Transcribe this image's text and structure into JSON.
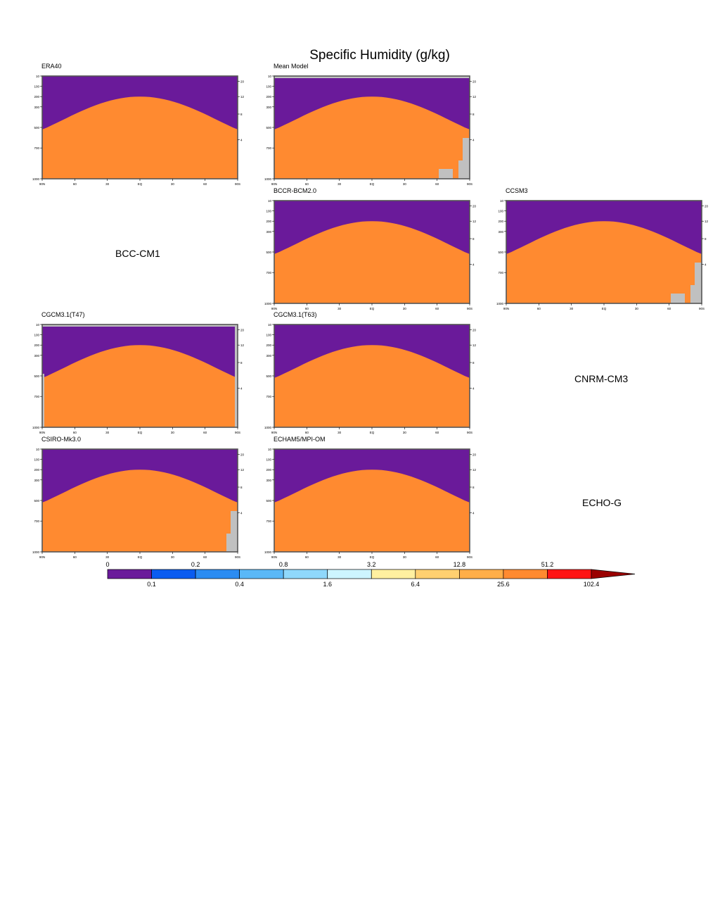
{
  "title": "Specific Humidity (g/kg)",
  "colors": {
    "levels": [
      "#6a1a9a",
      "#0a5cf0",
      "#2b8cf2",
      "#5ab8f7",
      "#8fd8fb",
      "#cdf5ff",
      "#fff0a0",
      "#ffd070",
      "#ffae48",
      "#ff8a30",
      "#ff1414"
    ],
    "missing": "#c0c0c0",
    "extend": "#9a0000"
  },
  "panel_axes": {
    "y_left_ticks": [
      "10",
      "100",
      "200",
      "300",
      "500",
      "700",
      "1000"
    ],
    "x_ticks": [
      "90N",
      "60",
      "30",
      "EQ",
      "30",
      "60",
      "90S"
    ],
    "y_right_ticks": [
      "20",
      "12",
      "8",
      "4"
    ]
  },
  "panels": [
    {
      "title": "ERA40",
      "missing": []
    },
    {
      "title": "Mean Model",
      "missing": [
        "top-strip",
        "right-step",
        "mid-box"
      ]
    },
    {
      "title": "BCCR-BCM2.0",
      "missing": []
    },
    {
      "title": "CCSM3",
      "missing": [
        "right-step",
        "mid-box"
      ]
    },
    {
      "title": "CGCM3.1(T47)",
      "missing": [
        "top-strip",
        "left-strip",
        "right-strip"
      ]
    },
    {
      "title": "CGCM3.1(T63)",
      "missing": []
    },
    {
      "title": "CSIRO-Mk3.0",
      "missing": [
        "right-step"
      ]
    },
    {
      "title": "ECHAM5/MPI-OM",
      "missing": []
    }
  ],
  "missing_models": [
    "BCC-CM1",
    "CNRM-CM3",
    "ECHO-G"
  ],
  "chart_data": {
    "type": "heatmap",
    "title": "Specific Humidity (g/kg)",
    "x_ticks": [
      "90N",
      "60",
      "30",
      "EQ",
      "30",
      "60",
      "90S"
    ],
    "y_ticks": [
      "10",
      "100",
      "200",
      "300",
      "500",
      "700",
      "1000"
    ],
    "colorbar": {
      "levels": [
        0,
        0.1,
        0.2,
        0.4,
        0.8,
        1.6,
        3.2,
        6.4,
        12.8,
        25.6,
        51.2,
        102.4
      ],
      "labels_top": [
        "0",
        "0.2",
        "0.8",
        "3.2",
        "12.8",
        "51.2"
      ],
      "labels_bottom": [
        "0.1",
        "0.4",
        "1.6",
        "6.4",
        "25.6",
        "102.4"
      ],
      "extend": "max"
    }
  }
}
